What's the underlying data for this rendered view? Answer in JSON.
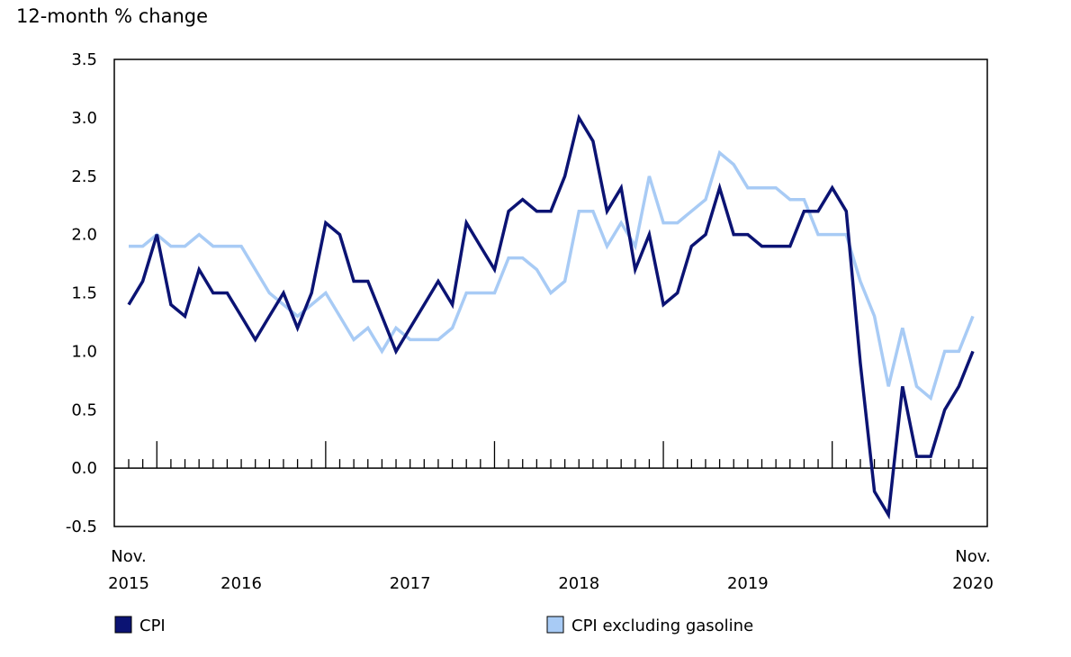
{
  "chart_data": {
    "type": "line",
    "title": "",
    "ylabel": "12-month % change",
    "xlabel": "",
    "ylim": [
      -0.5,
      3.5
    ],
    "yticks": [
      "3.5",
      "3.0",
      "2.5",
      "2.0",
      "1.5",
      "1.0",
      "0.5",
      "0.0",
      "-0.5"
    ],
    "ytick_values": [
      3.5,
      3.0,
      2.5,
      2.0,
      1.5,
      1.0,
      0.5,
      0.0,
      -0.5
    ],
    "x_start": "2015-11",
    "x_end": "2020-11",
    "xtick_labels": [
      {
        "line1": "Nov.",
        "line2": "2015",
        "month": "2015-11"
      },
      {
        "line1": "",
        "line2": "2016",
        "month": "2016-07"
      },
      {
        "line1": "",
        "line2": "2017",
        "month": "2017-07"
      },
      {
        "line1": "",
        "line2": "2018",
        "month": "2018-07"
      },
      {
        "line1": "",
        "line2": "2019",
        "month": "2019-07"
      },
      {
        "line1": "Nov.",
        "line2": "2020",
        "month": "2020-11"
      }
    ],
    "grid": false,
    "legend_placement": "bottom",
    "series": [
      {
        "name": "CPI",
        "color": "#0b1373",
        "values": [
          1.4,
          1.6,
          2.0,
          1.4,
          1.3,
          1.7,
          1.5,
          1.5,
          1.3,
          1.1,
          1.3,
          1.5,
          1.2,
          1.5,
          2.1,
          2.0,
          1.6,
          1.6,
          1.3,
          1.0,
          1.2,
          1.4,
          1.6,
          1.4,
          2.1,
          1.9,
          1.7,
          2.2,
          2.3,
          2.2,
          2.2,
          2.5,
          3.0,
          2.8,
          2.2,
          2.4,
          1.7,
          2.0,
          1.4,
          1.5,
          1.9,
          2.0,
          2.4,
          2.0,
          2.0,
          1.9,
          1.9,
          1.9,
          2.2,
          2.2,
          2.4,
          2.2,
          0.9,
          -0.2,
          -0.4,
          0.7,
          0.1,
          0.1,
          0.5,
          0.7,
          1.0
        ]
      },
      {
        "name": "CPI excluding gasoline",
        "color": "#a8cbf5",
        "values": [
          1.9,
          1.9,
          2.0,
          1.9,
          1.9,
          2.0,
          1.9,
          1.9,
          1.9,
          1.7,
          1.5,
          1.4,
          1.3,
          1.4,
          1.5,
          1.3,
          1.1,
          1.2,
          1.0,
          1.2,
          1.1,
          1.1,
          1.1,
          1.2,
          1.5,
          1.5,
          1.5,
          1.8,
          1.8,
          1.7,
          1.5,
          1.6,
          2.2,
          2.2,
          1.9,
          2.1,
          1.9,
          2.5,
          2.1,
          2.1,
          2.2,
          2.3,
          2.7,
          2.6,
          2.4,
          2.4,
          2.4,
          2.3,
          2.3,
          2.0,
          2.0,
          2.0,
          1.6,
          1.3,
          0.7,
          1.2,
          0.7,
          0.6,
          1.0,
          1.0,
          1.3
        ]
      }
    ]
  }
}
